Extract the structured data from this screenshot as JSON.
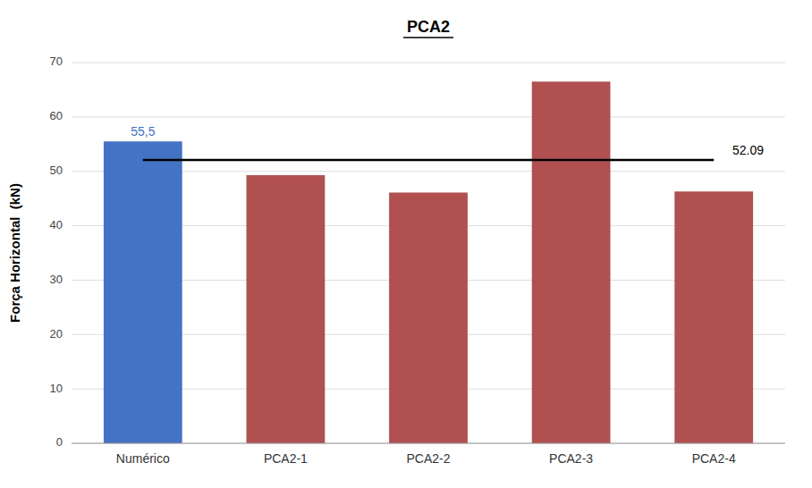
{
  "chart_data": {
    "type": "bar",
    "title": "PCA2",
    "categories": [
      "Numérico",
      "PCA2-1",
      "PCA2-2",
      "PCA2-3",
      "PCA2-4"
    ],
    "values": [
      55.5,
      49.3,
      46.1,
      66.5,
      46.3
    ],
    "value_labels": [
      "55,5",
      null,
      null,
      null,
      null
    ],
    "colors": [
      "#4472C4",
      "#B05050",
      "#B05050",
      "#B05050",
      "#B05050"
    ],
    "y_label": "Força Horizontal  (kN)",
    "ylim": [
      0,
      70
    ],
    "yticks": [
      0,
      10,
      20,
      30,
      40,
      50,
      60,
      70
    ],
    "reference_line": {
      "value": 52.09,
      "label": "52.09"
    },
    "grid": true
  }
}
